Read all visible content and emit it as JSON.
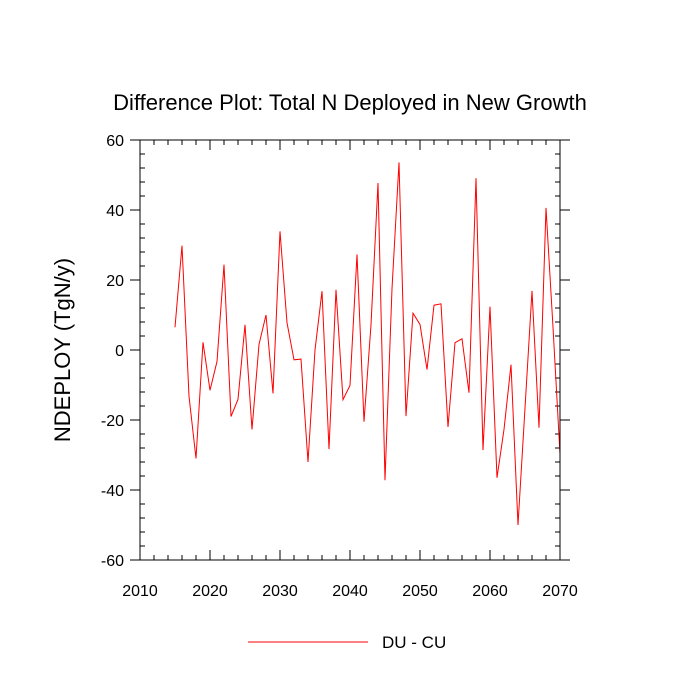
{
  "chart_data": {
    "type": "line",
    "title": "Difference Plot: Total N Deployed in New Growth",
    "xlabel": "",
    "ylabel": "NDEPLOY  (TgN/y)",
    "xlim": [
      2010,
      2070
    ],
    "ylim": [
      -60,
      60
    ],
    "x_ticks": [
      2010,
      2020,
      2030,
      2040,
      2050,
      2060,
      2070
    ],
    "x_tick_labels": [
      "2010",
      "2020",
      "2030",
      "2040",
      "2050",
      "2060",
      "2070"
    ],
    "y_ticks": [
      -60,
      -40,
      -20,
      0,
      20,
      40,
      60
    ],
    "y_tick_labels": [
      "-60",
      "-40",
      "-20",
      "0",
      "20",
      "40",
      "60"
    ],
    "grid": false,
    "legend_position": "bottom",
    "series": [
      {
        "name": "DU - CU",
        "color": "#ff0000",
        "x": [
          2015,
          2016,
          2017,
          2018,
          2019,
          2020,
          2021,
          2022,
          2023,
          2024,
          2025,
          2026,
          2027,
          2028,
          2029,
          2030,
          2031,
          2032,
          2033,
          2034,
          2035,
          2036,
          2037,
          2038,
          2039,
          2040,
          2041,
          2042,
          2043,
          2044,
          2045,
          2046,
          2047,
          2048,
          2049,
          2050,
          2051,
          2052,
          2053,
          2054,
          2055,
          2056,
          2057,
          2058,
          2059,
          2060,
          2061,
          2062,
          2063,
          2064,
          2065,
          2066,
          2067,
          2068,
          2069,
          2070
        ],
        "values": [
          6.5,
          29.8,
          -13.2,
          -31.0,
          2.2,
          -11.5,
          -3.3,
          24.4,
          -19.0,
          -14.1,
          7.2,
          -22.7,
          1.6,
          10.0,
          -12.4,
          33.9,
          7.8,
          -2.8,
          -2.6,
          -32.0,
          0.0,
          16.8,
          -28.3,
          17.2,
          -14.2,
          -10.1,
          27.3,
          -20.5,
          7.2,
          47.7,
          -37.2,
          17.5,
          53.6,
          -18.9,
          10.5,
          7.3,
          -5.6,
          12.8,
          13.2,
          -22.0,
          2.1,
          3.2,
          -12.2,
          49.1,
          -28.6,
          12.4,
          -36.5,
          -22.7,
          -4.2,
          -50.0,
          -16.6,
          16.9,
          -22.2,
          40.6,
          6.5,
          -29.7
        ]
      }
    ]
  }
}
